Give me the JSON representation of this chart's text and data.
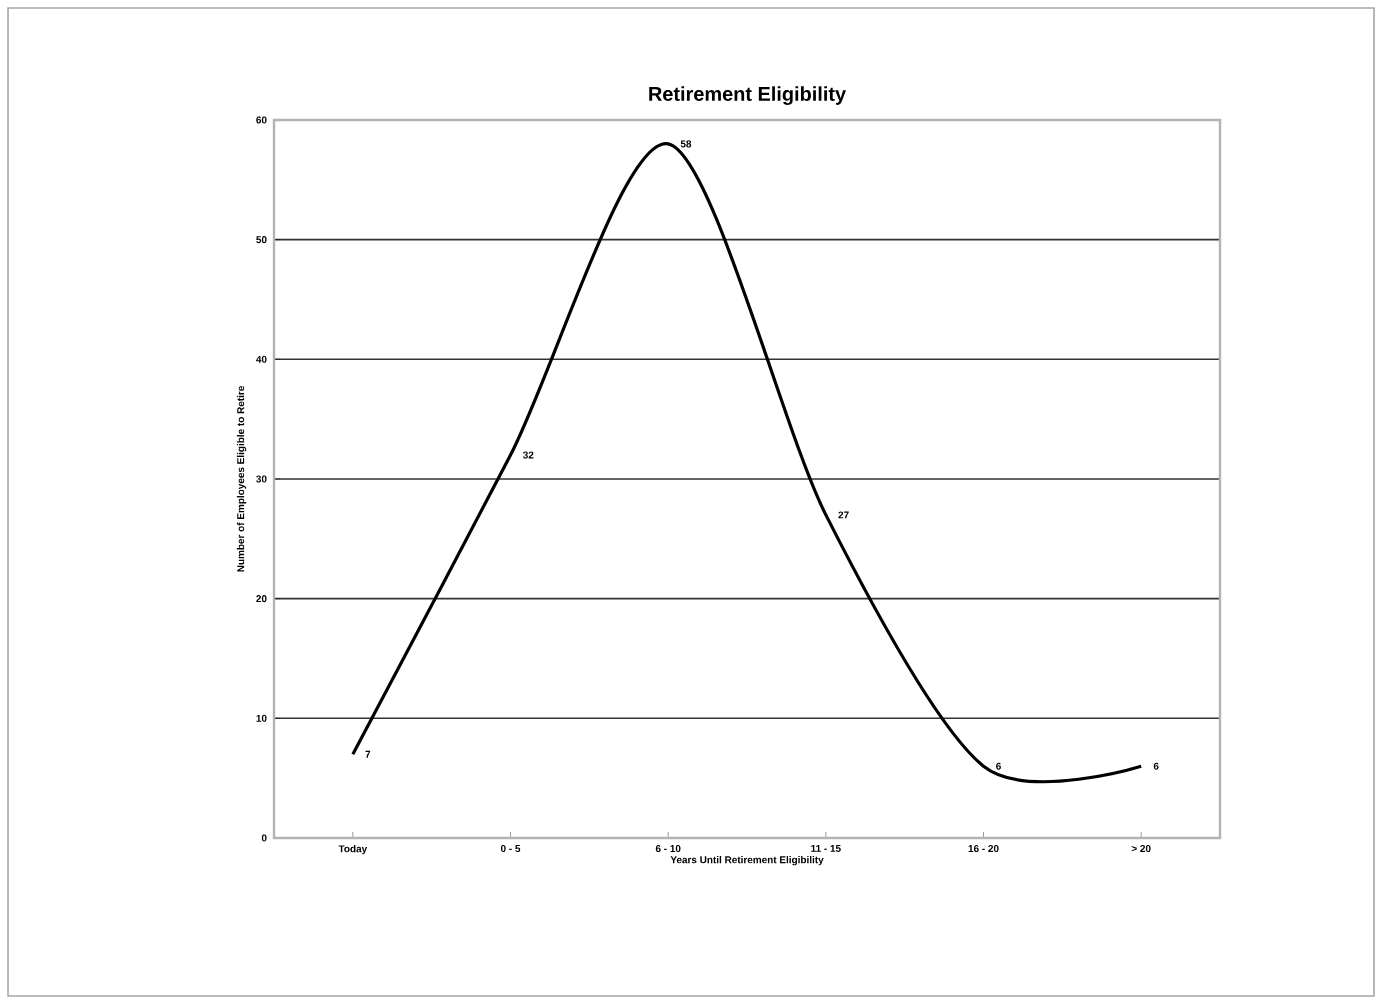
{
  "chart_data": {
    "type": "line",
    "title": "Retirement Eligibility",
    "xlabel": "Years Until Retirement Eligibility",
    "ylabel": "Number of Employees Eligible to Retire",
    "categories": [
      "Today",
      "0 - 5",
      "6 - 10",
      "11 - 15",
      "16 - 20",
      "> 20"
    ],
    "series": [
      {
        "color": "#000000",
        "values": [
          7,
          32,
          58,
          27,
          6,
          6
        ]
      }
    ],
    "ylim": [
      0,
      60
    ],
    "yticks": [
      0,
      10,
      20,
      30,
      40,
      50,
      60
    ],
    "grid": "y",
    "data_labels": true,
    "marker": "none",
    "line_style": "solid"
  }
}
